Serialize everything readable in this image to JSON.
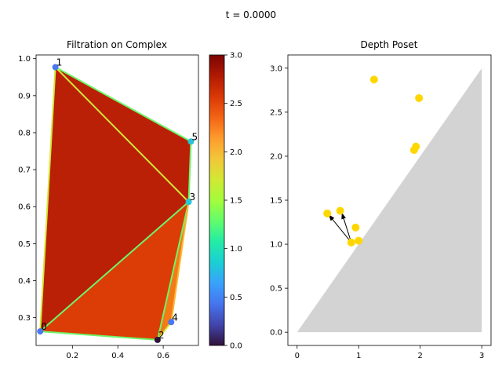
{
  "suptitle": "t = 0.0000",
  "chart_data": [
    {
      "type": "filtration-complex",
      "title": "Filtration on Complex",
      "xlim": [
        0.04,
        0.755
      ],
      "ylim": [
        0.225,
        1.01
      ],
      "xticks": [
        0.2,
        0.4,
        0.6
      ],
      "yticks": [
        0.3,
        0.4,
        0.5,
        0.6,
        0.7,
        0.8,
        0.9,
        1.0
      ],
      "xtick_labels": [
        "0.2",
        "0.4",
        "0.6"
      ],
      "ytick_labels": [
        "0.3",
        "0.4",
        "0.5",
        "0.6",
        "0.7",
        "0.8",
        "0.9",
        "1.0"
      ],
      "vertices": [
        {
          "label": "0",
          "x": 0.058,
          "y": 0.263,
          "color": "#4a78f0"
        },
        {
          "label": "1",
          "x": 0.125,
          "y": 0.977,
          "color": "#4a78f0"
        },
        {
          "label": "2",
          "x": 0.575,
          "y": 0.24,
          "color": "#30123b"
        },
        {
          "label": "3",
          "x": 0.712,
          "y": 0.613,
          "color": "#28c5d8"
        },
        {
          "label": "4",
          "x": 0.635,
          "y": 0.288,
          "color": "#4a78f0"
        },
        {
          "label": "5",
          "x": 0.722,
          "y": 0.776,
          "color": "#28c5d8"
        }
      ],
      "triangles": [
        {
          "v": [
            0,
            1,
            3
          ],
          "color": "#b92006"
        },
        {
          "v": [
            1,
            3,
            5
          ],
          "color": "#b92006"
        },
        {
          "v": [
            0,
            2,
            3
          ],
          "color": "#dc3d06"
        },
        {
          "v": [
            2,
            3,
            4
          ],
          "color": "#f47a18"
        }
      ],
      "edges": [
        {
          "v": [
            0,
            1
          ],
          "color": "#d2e835"
        },
        {
          "v": [
            1,
            5
          ],
          "color": "#6ef568"
        },
        {
          "v": [
            1,
            3
          ],
          "color": "#d2e835"
        },
        {
          "v": [
            3,
            5
          ],
          "color": "#6ef568"
        },
        {
          "v": [
            0,
            3
          ],
          "color": "#6ef568"
        },
        {
          "v": [
            0,
            2
          ],
          "color": "#6ef568"
        },
        {
          "v": [
            2,
            3
          ],
          "color": "#6ef568"
        },
        {
          "v": [
            2,
            4
          ],
          "color": "#d2e835"
        },
        {
          "v": [
            3,
            4
          ],
          "color": "#f9b733"
        }
      ],
      "colorbar": {
        "range": [
          0.0,
          3.0
        ],
        "ticks": [
          0.0,
          0.5,
          1.0,
          1.5,
          2.0,
          2.5,
          3.0
        ],
        "tick_labels": [
          "0.0",
          "0.5",
          "1.0",
          "1.5",
          "2.0",
          "2.5",
          "3.0"
        ],
        "colormap": "turbo",
        "stops": [
          "#30123b",
          "#4145ab",
          "#4675ed",
          "#39a2fc",
          "#1bcfd4",
          "#24eca6",
          "#61fc6c",
          "#a4fc3b",
          "#d1e834",
          "#f3c63a",
          "#fe9b2d",
          "#f36315",
          "#d93806",
          "#b11901",
          "#7a0402"
        ]
      }
    },
    {
      "type": "scatter",
      "title": "Depth Poset",
      "xlim": [
        -0.15,
        3.15
      ],
      "ylim": [
        -0.15,
        3.15
      ],
      "xticks": [
        0,
        1,
        2,
        3
      ],
      "yticks": [
        0.0,
        0.5,
        1.0,
        1.5,
        2.0,
        2.5,
        3.0
      ],
      "xtick_labels": [
        "0",
        "1",
        "2",
        "3"
      ],
      "ytick_labels": [
        "0.0",
        "0.5",
        "1.0",
        "1.5",
        "2.0",
        "2.5",
        "3.0"
      ],
      "region": {
        "points": [
          [
            0,
            0
          ],
          [
            3,
            0
          ],
          [
            3,
            3
          ]
        ],
        "color": "#d3d3d3"
      },
      "point_color": "#ffd700",
      "points": [
        {
          "x": 1.25,
          "y": 2.87
        },
        {
          "x": 1.98,
          "y": 2.66
        },
        {
          "x": 1.93,
          "y": 2.11
        },
        {
          "x": 1.9,
          "y": 2.07
        },
        {
          "x": 0.49,
          "y": 1.35
        },
        {
          "x": 0.7,
          "y": 1.38
        },
        {
          "x": 0.95,
          "y": 1.19
        },
        {
          "x": 0.88,
          "y": 1.02
        },
        {
          "x": 1.0,
          "y": 1.04
        }
      ],
      "arrows": [
        {
          "from": [
            0.88,
            1.02
          ],
          "to": [
            0.52,
            1.33
          ]
        },
        {
          "from": [
            0.88,
            1.02
          ],
          "to": [
            0.73,
            1.35
          ]
        }
      ]
    }
  ]
}
